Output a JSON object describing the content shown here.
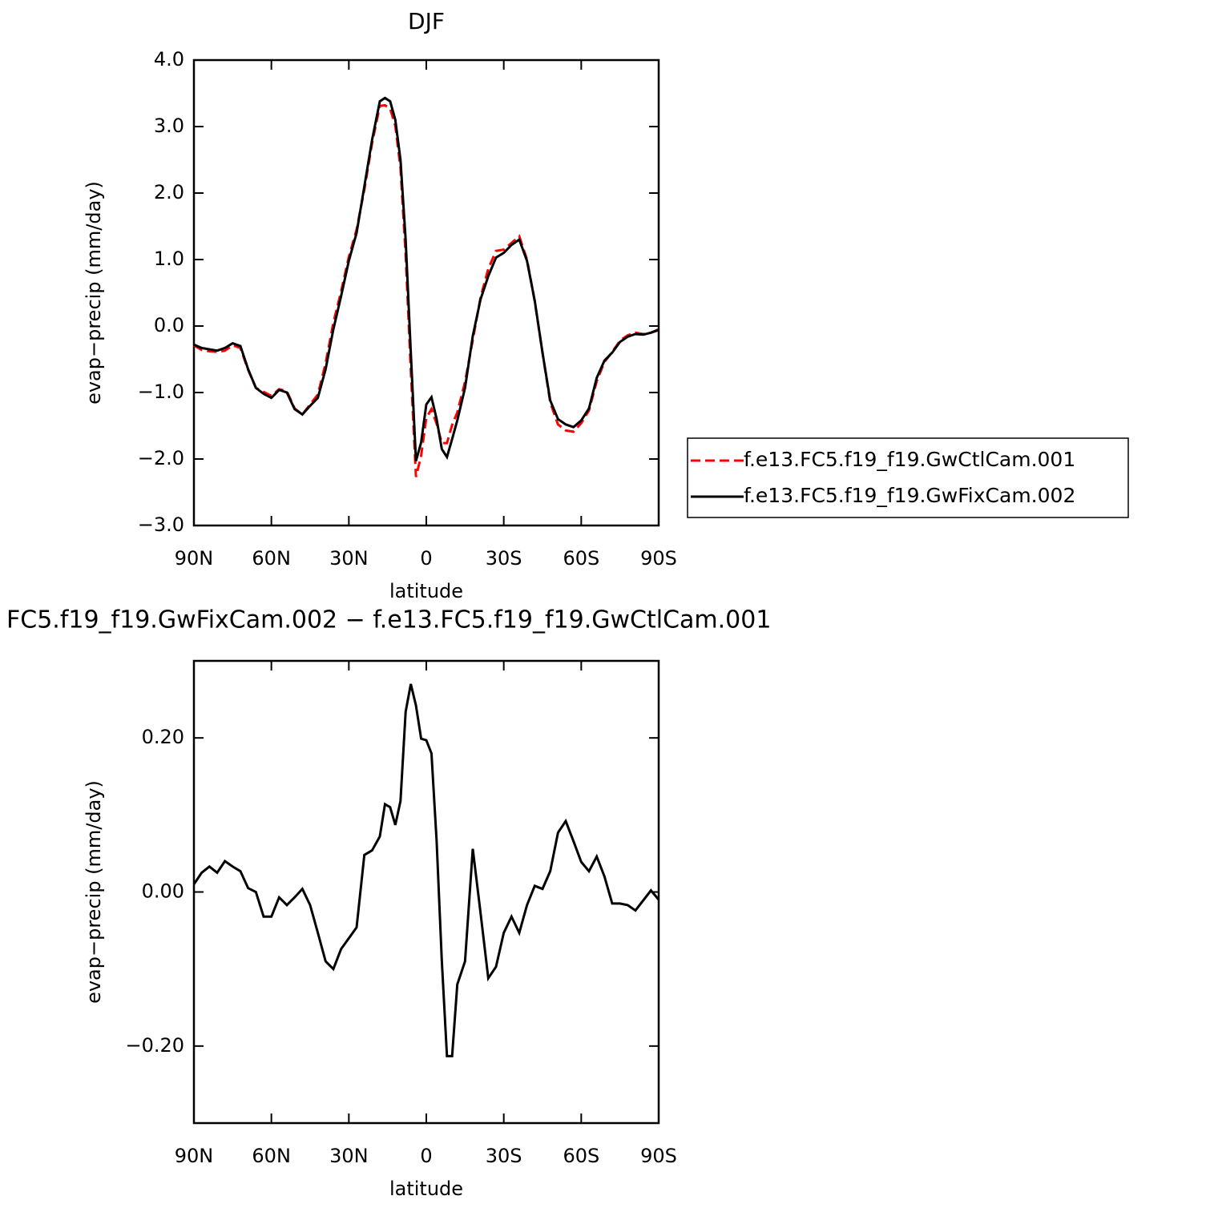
{
  "chart_data": [
    {
      "type": "line",
      "title": "DJF",
      "xlabel": "latitude",
      "ylabel": "evap−precip (mm/day)",
      "x": [
        90,
        87,
        84,
        81,
        78,
        75,
        72,
        69,
        66,
        63,
        60,
        57,
        54,
        51,
        48,
        45,
        42,
        39,
        36,
        33,
        30,
        27,
        24,
        21,
        18,
        16,
        14,
        12,
        10,
        8,
        6,
        4,
        2,
        0,
        -2,
        -4,
        -6,
        -8,
        -10,
        -12,
        -15,
        -18,
        -21,
        -24,
        -27,
        -30,
        -33,
        -36,
        -39,
        -42,
        -45,
        -48,
        -51,
        -54,
        -57,
        -60,
        -63,
        -66,
        -69,
        -72,
        -75,
        -78,
        -81,
        -84,
        -87,
        -90
      ],
      "series": [
        {
          "name": "f.e13.FC5.f19_f19.GwCtlCam.001",
          "color": "#ff0000",
          "linestyle": "dashed",
          "values": [
            -0.29,
            -0.36,
            -0.38,
            -0.39,
            -0.37,
            -0.29,
            -0.33,
            -0.66,
            -0.93,
            -0.99,
            -1.05,
            -0.95,
            -0.98,
            -1.24,
            -1.33,
            -1.18,
            -1.03,
            -0.56,
            0.05,
            0.52,
            1.04,
            1.45,
            2.05,
            2.75,
            3.31,
            3.32,
            3.27,
            3.01,
            2.38,
            1.07,
            -0.67,
            -2.27,
            -1.95,
            -1.38,
            -1.25,
            -1.47,
            -1.76,
            -1.76,
            -1.49,
            -1.3,
            -0.84,
            -0.21,
            0.43,
            0.86,
            1.13,
            1.15,
            1.25,
            1.35,
            1.0,
            0.37,
            -0.4,
            -1.15,
            -1.48,
            -1.57,
            -1.59,
            -1.46,
            -1.27,
            -0.83,
            -0.54,
            -0.39,
            -0.22,
            -0.14,
            -0.1,
            -0.12,
            -0.1,
            -0.05
          ]
        },
        {
          "name": "f.e13.FC5.f19_f19.GwFixCam.002",
          "color": "#000000",
          "linestyle": "solid",
          "values": [
            -0.28,
            -0.33,
            -0.35,
            -0.37,
            -0.33,
            -0.26,
            -0.3,
            -0.65,
            -0.93,
            -1.02,
            -1.08,
            -0.96,
            -1.0,
            -1.25,
            -1.33,
            -1.2,
            -1.08,
            -0.65,
            -0.05,
            0.45,
            0.98,
            1.4,
            2.1,
            2.8,
            3.38,
            3.43,
            3.38,
            3.1,
            2.5,
            1.3,
            -0.4,
            -2.03,
            -1.75,
            -1.18,
            -1.07,
            -1.4,
            -1.85,
            -1.97,
            -1.7,
            -1.42,
            -0.93,
            -0.15,
            0.4,
            0.75,
            1.03,
            1.1,
            1.22,
            1.3,
            0.98,
            0.38,
            -0.4,
            -1.12,
            -1.4,
            -1.48,
            -1.52,
            -1.42,
            -1.24,
            -0.78,
            -0.52,
            -0.4,
            -0.24,
            -0.16,
            -0.12,
            -0.13,
            -0.1,
            -0.06
          ]
        }
      ],
      "xlim": [
        90,
        -90
      ],
      "xticks": [
        {
          "value": 90,
          "label": "90N"
        },
        {
          "value": 60,
          "label": "60N"
        },
        {
          "value": 30,
          "label": "30N"
        },
        0,
        {
          "value": -30,
          "label": "30S"
        },
        {
          "value": -60,
          "label": "60S"
        },
        {
          "value": -90,
          "label": "90S"
        }
      ],
      "ylim": [
        -3,
        4
      ],
      "yticks": [
        {
          "value": -3,
          "label": "−3.0"
        },
        {
          "value": -2,
          "label": "−2.0"
        },
        {
          "value": -1,
          "label": "−1.0"
        },
        {
          "value": 0,
          "label": "0.0"
        },
        {
          "value": 1,
          "label": "1.0"
        },
        {
          "value": 2,
          "label": "2.0"
        },
        {
          "value": 3,
          "label": "3.0"
        },
        {
          "value": 4,
          "label": "4.0"
        }
      ],
      "legend": "outside-right"
    },
    {
      "type": "line",
      "title": "FC5.f19_f19.GwFixCam.002 − f.e13.FC5.f19_f19.GwCtlCam.001",
      "xlabel": "latitude",
      "ylabel": "evap−precip (mm/day)",
      "x": [
        90,
        87,
        84,
        81,
        78,
        75,
        72,
        69,
        66,
        63,
        60,
        57,
        54,
        51,
        48,
        45,
        42,
        39,
        36,
        33,
        30,
        27,
        24,
        21,
        18,
        16,
        14,
        12,
        10,
        8,
        6,
        4,
        2,
        0,
        -2,
        -4,
        -6,
        -8,
        -10,
        -12,
        -15,
        -18,
        -21,
        -24,
        -27,
        -30,
        -33,
        -36,
        -39,
        -42,
        -45,
        -48,
        -51,
        -54,
        -57,
        -60,
        -63,
        -66,
        -69,
        -72,
        -75,
        -78,
        -81,
        -84,
        -87,
        -90
      ],
      "series": [
        {
          "color": "#000000",
          "linestyle": "solid",
          "values": [
            0.01,
            0.025,
            0.033,
            0.025,
            0.04,
            0.033,
            0.027,
            0.005,
            0.0,
            -0.032,
            -0.032,
            -0.007,
            -0.017,
            -0.007,
            0.004,
            -0.017,
            -0.053,
            -0.09,
            -0.1,
            -0.074,
            -0.06,
            -0.046,
            0.048,
            0.054,
            0.072,
            0.114,
            0.11,
            0.087,
            0.118,
            0.234,
            0.27,
            0.242,
            0.199,
            0.197,
            0.18,
            0.066,
            -0.089,
            -0.213,
            -0.213,
            -0.12,
            -0.09,
            0.056,
            -0.027,
            -0.112,
            -0.097,
            -0.053,
            -0.032,
            -0.053,
            -0.017,
            0.008,
            0.004,
            0.027,
            0.077,
            0.092,
            0.066,
            0.039,
            0.027,
            0.046,
            0.02,
            -0.015,
            -0.015,
            -0.017,
            -0.024,
            -0.011,
            0.002,
            -0.01
          ]
        }
      ],
      "xlim": [
        90,
        -90
      ],
      "xticks": [
        {
          "value": 90,
          "label": "90N"
        },
        {
          "value": 60,
          "label": "60N"
        },
        {
          "value": 30,
          "label": "30N"
        },
        0,
        {
          "value": -30,
          "label": "30S"
        },
        {
          "value": -60,
          "label": "60S"
        },
        {
          "value": -90,
          "label": "90S"
        }
      ],
      "ylim": [
        -0.3,
        0.3
      ],
      "yticks": [
        {
          "value": -0.2,
          "label": "−0.20"
        },
        {
          "value": 0,
          "label": "0.00"
        },
        {
          "value": 0.2,
          "label": "0.20"
        }
      ]
    }
  ]
}
